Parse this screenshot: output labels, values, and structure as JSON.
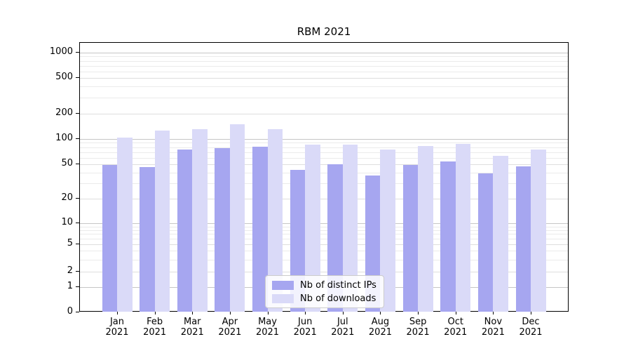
{
  "chart_data": {
    "type": "bar",
    "title": "RBM 2021",
    "categories": [
      "Jan 2021",
      "Feb 2021",
      "Mar 2021",
      "Apr 2021",
      "May 2021",
      "Jun 2021",
      "Jul 2021",
      "Aug 2021",
      "Sep 2021",
      "Oct 2021",
      "Nov 2021",
      "Dec 2021"
    ],
    "series": [
      {
        "name": "Nb of distinct IPs",
        "color": "#a6a6f0",
        "values": [
          49,
          46,
          75,
          78,
          81,
          43,
          50,
          37,
          49,
          54,
          39,
          47
        ]
      },
      {
        "name": "Nb of downloads",
        "color": "#dadaf8",
        "values": [
          103,
          125,
          130,
          150,
          132,
          86,
          86,
          75,
          82,
          87,
          63,
          75
        ]
      }
    ],
    "xlabel": "",
    "ylabel": "",
    "yscale": "symlog",
    "ytick_values": [
      0,
      1,
      2,
      5,
      10,
      20,
      50,
      100,
      200,
      500,
      1000
    ],
    "minor_tick_values": [
      3,
      4,
      6,
      7,
      8,
      9,
      30,
      40,
      60,
      70,
      80,
      90,
      300,
      400,
      600,
      700,
      800,
      900
    ],
    "ylim": [
      0,
      1300
    ],
    "grid": true,
    "legend_position": "lower center"
  },
  "colors": {
    "background": "#ffffff",
    "axis": "#000000",
    "decade_gridline": "#c6c6c6",
    "labeled_gridline": "#dedede",
    "minor_gridline": "#ebebeb",
    "legend_border": "#cccccc"
  }
}
